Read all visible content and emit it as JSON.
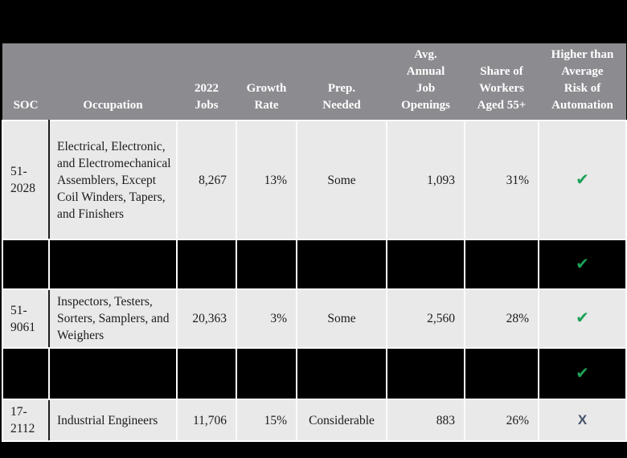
{
  "table": {
    "header": [
      {
        "id": "soc",
        "label": "SOC"
      },
      {
        "id": "occupation",
        "label": "Occupation"
      },
      {
        "id": "jobs_2022",
        "label": "2022\nJobs"
      },
      {
        "id": "growth_rate",
        "label": "Growth\nRate"
      },
      {
        "id": "prep_needed",
        "label": "Prep.\nNeeded"
      },
      {
        "id": "avg_annual_job_openings",
        "label": "Avg.\nAnnual\nJob\nOpenings"
      },
      {
        "id": "share_workers_55",
        "label": "Share of\nWorkers\nAged 55+"
      },
      {
        "id": "automation_risk",
        "label": "Higher than\nAverage\nRisk of\nAutomation"
      }
    ],
    "rows": [
      {
        "redacted": false,
        "soc": "51-2028",
        "occupation": "Electrical, Electronic, and Electromechanical Assemblers, Except Coil Winders, Tapers, and Finishers",
        "jobs_2022": "8,267",
        "growth_rate": "13%",
        "prep_needed": "Some",
        "avg_annual_job_openings": "1,093",
        "share_workers_55": "31%",
        "automation_risk": "check"
      },
      {
        "redacted": true,
        "automation_risk": "check"
      },
      {
        "redacted": false,
        "soc": "51-9061",
        "occupation": "Inspectors, Testers, Sorters, Samplers, and Weighers",
        "jobs_2022": "20,363",
        "growth_rate": "3%",
        "prep_needed": "Some",
        "avg_annual_job_openings": "2,560",
        "share_workers_55": "28%",
        "automation_risk": "check"
      },
      {
        "redacted": true,
        "automation_risk": "check"
      },
      {
        "redacted": false,
        "soc": "17-2112",
        "occupation": "Industrial Engineers",
        "jobs_2022": "11,706",
        "growth_rate": "15%",
        "prep_needed": "Considerable",
        "avg_annual_job_openings": "883",
        "share_workers_55": "26%",
        "automation_risk": "x"
      }
    ],
    "glyphs": {
      "check": "✔",
      "x": "X"
    },
    "colors": {
      "page_bg": "#000000",
      "header_bg": "#8c8c90",
      "row_bg": "#e9e9e9",
      "redacted_bg": "#000000",
      "check": "#1aa157",
      "x": "#44546a"
    }
  }
}
